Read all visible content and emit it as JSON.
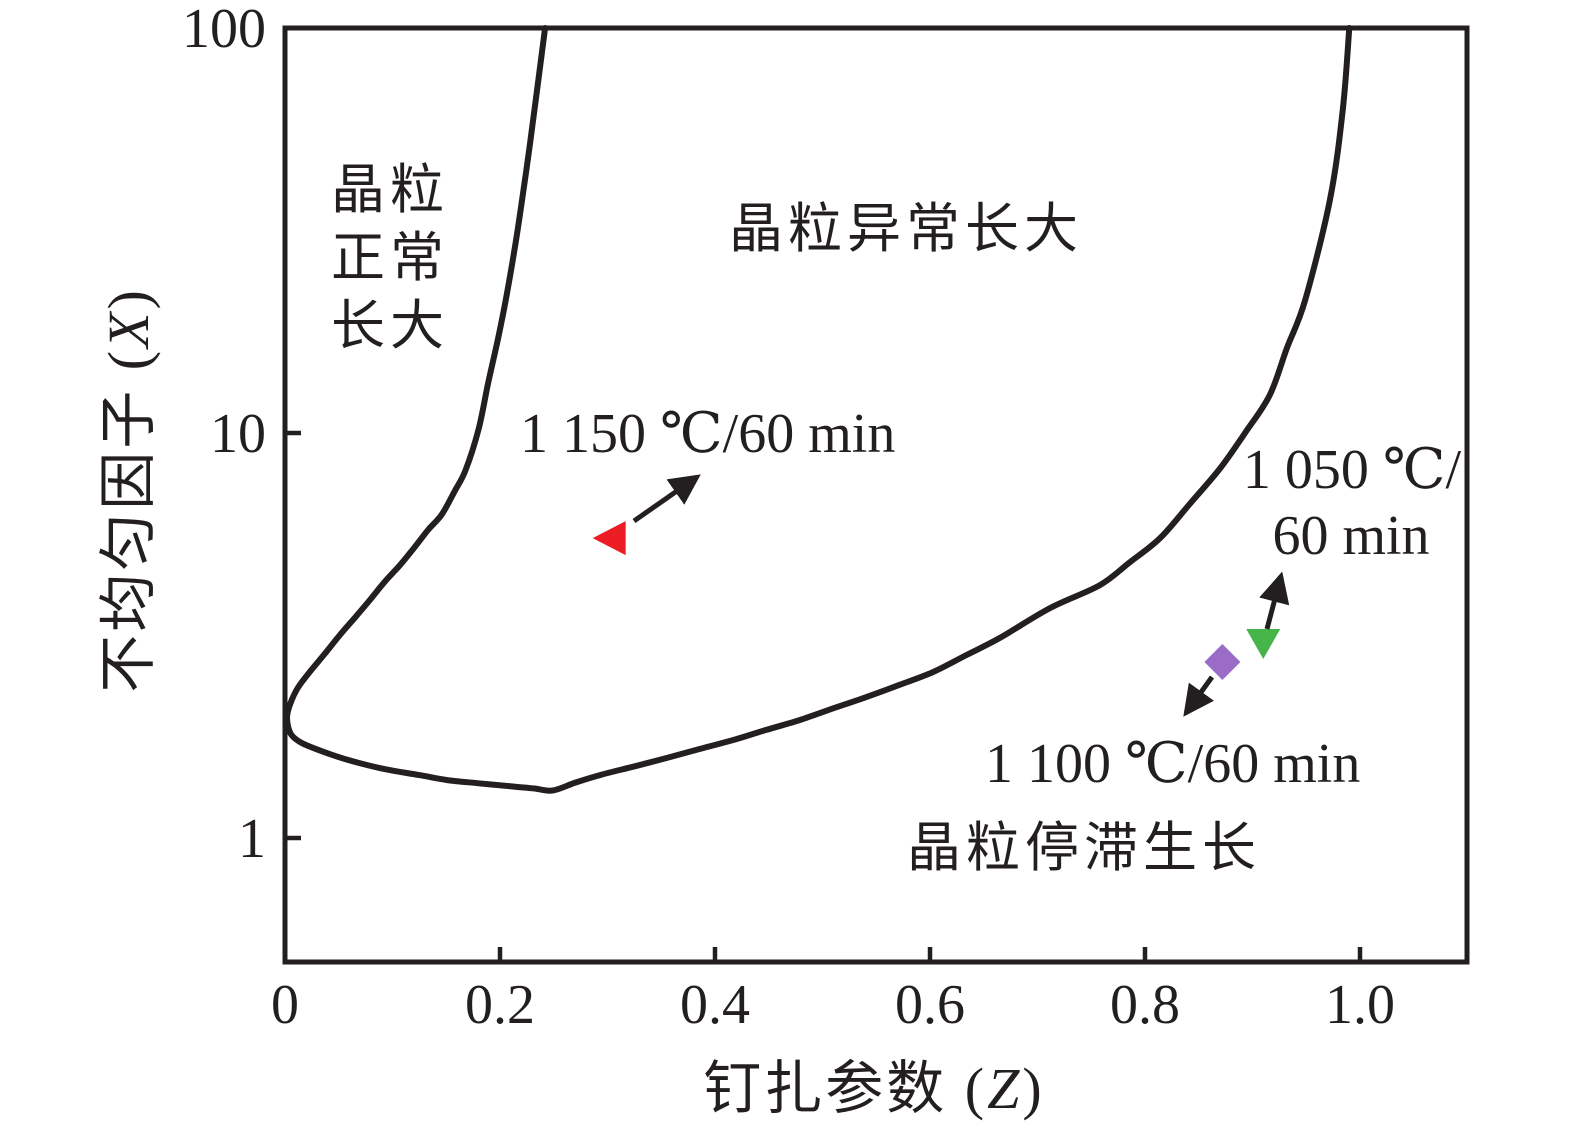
{
  "chart_data": {
    "type": "scatter",
    "title": "",
    "x_axis": {
      "label": "钉扎参数 (Z)",
      "label_prefix": "钉扎参数 (",
      "label_variable": "Z",
      "label_suffix": ")",
      "scale": "linear",
      "range": [
        0,
        1.1
      ],
      "ticks": [
        0,
        0.2,
        0.4,
        0.6,
        0.8,
        1.0
      ],
      "tick_labels": [
        "0",
        "0.2",
        "0.4",
        "0.6",
        "0.8",
        "1.0"
      ]
    },
    "y_axis": {
      "label": "不均匀因子 (X)",
      "label_prefix": "不均匀因子 (",
      "label_variable": "X",
      "label_suffix": ")",
      "scale": "log",
      "range": [
        0.49,
        100
      ],
      "ticks": [
        1,
        10,
        100
      ],
      "tick_labels": [
        "1",
        "10",
        "100"
      ]
    },
    "grid": false,
    "legend_position": "none",
    "regions": [
      "晶粒正常长大",
      "晶粒异常长大",
      "晶粒停滞生长"
    ],
    "series": [
      {
        "name": "1 150 ℃/60 min",
        "marker": "triangle-left",
        "color": "#EC1C24",
        "points": [
          [
            0.302,
            5.5
          ]
        ]
      },
      {
        "name": "1 100 ℃/60 min",
        "marker": "diamond",
        "color": "#9B6BC8",
        "points": [
          [
            0.872,
            2.72
          ]
        ]
      },
      {
        "name": "1 050 ℃/60 min",
        "marker": "triangle-down",
        "color": "#46B549",
        "points": [
          [
            0.91,
            3.03
          ]
        ]
      }
    ],
    "boundary_curve": [
      [
        0.242,
        100
      ],
      [
        0.235,
        72
      ],
      [
        0.228,
        52
      ],
      [
        0.222,
        40
      ],
      [
        0.215,
        30
      ],
      [
        0.207,
        22.5
      ],
      [
        0.199,
        17.5
      ],
      [
        0.189,
        13.3
      ],
      [
        0.18,
        10.2
      ],
      [
        0.168,
        8.1
      ],
      [
        0.158,
        7.2
      ],
      [
        0.146,
        6.3
      ],
      [
        0.133,
        5.76
      ],
      [
        0.12,
        5.2
      ],
      [
        0.107,
        4.72
      ],
      [
        0.093,
        4.3
      ],
      [
        0.079,
        3.87
      ],
      [
        0.065,
        3.5
      ],
      [
        0.051,
        3.17
      ],
      [
        0.037,
        2.85
      ],
      [
        0.023,
        2.57
      ],
      [
        0.012,
        2.35
      ],
      [
        0.005,
        2.15
      ],
      [
        0.002,
        2.0
      ],
      [
        0.003,
        1.88
      ],
      [
        0.0065,
        1.79
      ],
      [
        0.015,
        1.72
      ],
      [
        0.026,
        1.67
      ],
      [
        0.042,
        1.61
      ],
      [
        0.058,
        1.56
      ],
      [
        0.078,
        1.51
      ],
      [
        0.098,
        1.47
      ],
      [
        0.125,
        1.43
      ],
      [
        0.151,
        1.39
      ],
      [
        0.18,
        1.365
      ],
      [
        0.212,
        1.34
      ],
      [
        0.232,
        1.325
      ],
      [
        0.249,
        1.31
      ],
      [
        0.27,
        1.37
      ],
      [
        0.293,
        1.43
      ],
      [
        0.324,
        1.5
      ],
      [
        0.355,
        1.576
      ],
      [
        0.386,
        1.66
      ],
      [
        0.417,
        1.746
      ],
      [
        0.448,
        1.85
      ],
      [
        0.479,
        1.956
      ],
      [
        0.51,
        2.09
      ],
      [
        0.541,
        2.23
      ],
      [
        0.572,
        2.39
      ],
      [
        0.603,
        2.57
      ],
      [
        0.634,
        2.83
      ],
      [
        0.665,
        3.12
      ],
      [
        0.712,
        3.7
      ],
      [
        0.758,
        4.21
      ],
      [
        0.786,
        4.8
      ],
      [
        0.814,
        5.5
      ],
      [
        0.842,
        6.7
      ],
      [
        0.87,
        8.19
      ],
      [
        0.893,
        10.0
      ],
      [
        0.916,
        12.4
      ],
      [
        0.932,
        16.2
      ],
      [
        0.949,
        21.3
      ],
      [
        0.972,
        37.6
      ],
      [
        0.984,
        62.9
      ],
      [
        0.99,
        100
      ]
    ]
  },
  "regions": {
    "normal_line1": "晶粒",
    "normal_line2": "正常",
    "normal_line3": "长大",
    "abnormal": "晶粒异常长大",
    "stagnant": "晶粒停滞生长"
  },
  "annotations": {
    "t1150": "1 150 ℃/60 min",
    "t1100": "1 100 ℃/60 min",
    "t1050_line1": "1 050 ℃/",
    "t1050_line2": "60 min"
  },
  "axes": {
    "x_prefix": "钉扎参数 (",
    "x_variable": "Z",
    "x_suffix": ")",
    "y_prefix": "不均匀因子 (",
    "y_variable": "X",
    "y_suffix": ")"
  },
  "colors": {
    "ink": "#231f20",
    "red_marker": "#EC1C24",
    "purple_marker": "#9B6BC8",
    "green_marker": "#46B549",
    "background": "#ffffff"
  }
}
